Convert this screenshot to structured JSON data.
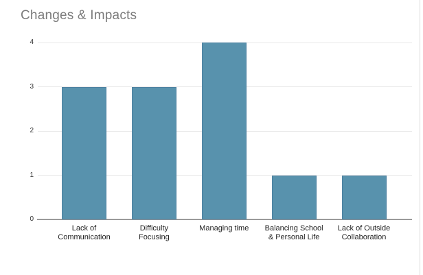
{
  "chart_data": {
    "type": "bar",
    "title": "Changes & Impacts",
    "categories": [
      "Lack of Communication",
      "Difficulty Focusing",
      "Managing time",
      "Balancing School & Personal Life",
      "Lack of Outside Collaboration"
    ],
    "category_lines": [
      [
        "Lack of",
        "Communication"
      ],
      [
        "Difficulty",
        "Focusing"
      ],
      [
        "Managing time"
      ],
      [
        "Balancing School",
        "& Personal Life"
      ],
      [
        "Lack of Outside",
        "Collaboration"
      ]
    ],
    "values": [
      3,
      3,
      4,
      1,
      1
    ],
    "xlabel": "",
    "ylabel": "",
    "ylim": [
      0,
      4
    ],
    "yticks": [
      0,
      1,
      2,
      3,
      4
    ],
    "grid": true,
    "legend": "none",
    "bar_color": "#5892ad",
    "bar_border_color": "#4b80a0",
    "title_color": "#7b7b7b",
    "gridline_color": "#e8e8e8",
    "baseline_color": "#9a9a9a",
    "tick_label_color": "#333333",
    "category_label_color": "#222222"
  }
}
